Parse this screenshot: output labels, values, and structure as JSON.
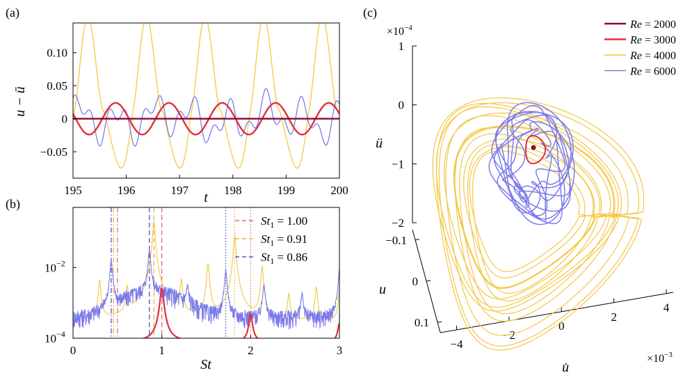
{
  "colors": {
    "re2000": "#8a0a2e",
    "re3000": "#e0303c",
    "re4000": "#f3c744",
    "re6000": "#7b7bea",
    "st100": "#e05060",
    "st091": "#e8a040",
    "st086": "#2a3ab0"
  },
  "chart_data": [
    {
      "panel_label": "(a)",
      "type": "line",
      "xlabel": "t",
      "ylabel": "u − ū",
      "xlim": [
        195,
        200
      ],
      "ylim": [
        -0.09,
        0.145
      ],
      "x_ticks": [
        "195",
        "196",
        "197",
        "198",
        "199",
        "200"
      ],
      "y_ticks": [
        {
          "v": 0.1,
          "label": "0.10"
        },
        {
          "v": 0.05,
          "label": "0.05"
        },
        {
          "v": 0,
          "label": "0"
        },
        {
          "v": -0.05,
          "label": "−0.05"
        }
      ],
      "series": [
        {
          "name": "Re = 4000",
          "type": "sine",
          "amplitude": 0.11,
          "offset": 0.025,
          "period": 1.1,
          "peak_t": 195.3,
          "sharpness": 3
        },
        {
          "name": "Re = 6000",
          "type": "multi",
          "components": [
            {
              "amp": 0.022,
              "freq": 1.43,
              "phase": 0.4
            },
            {
              "amp": 0.016,
              "freq": 3.05,
              "phase": 1.3
            },
            {
              "amp": 0.008,
              "freq": 0.52,
              "phase": 2.0
            }
          ]
        },
        {
          "name": "Re = 3000",
          "type": "sine",
          "amplitude": 0.024,
          "offset": 0.0,
          "period": 1.0,
          "peak_t": 195.8
        },
        {
          "name": "Re = 2000",
          "type": "constant",
          "value": 0.0
        }
      ]
    },
    {
      "panel_label": "(b)",
      "type": "line",
      "xlabel": "St",
      "ylabel": "",
      "xlim": [
        0,
        3
      ],
      "yscale": "log",
      "ylim": [
        0.0001,
        0.5
      ],
      "x_ticks": [
        "0",
        "1",
        "2",
        "3"
      ],
      "y_ticks": [
        {
          "exp": -2,
          "label": "10",
          "sup": "−2"
        },
        {
          "exp": -4,
          "label": "10",
          "sup": "−4"
        }
      ],
      "legend": [
        {
          "label": "St",
          "sub": "1",
          "value": " = 1.00",
          "style": "dashed",
          "color_key": "st100"
        },
        {
          "label": "St",
          "sub": "1",
          "value": " = 0.91",
          "style": "dashed",
          "color_key": "st091"
        },
        {
          "label": "St",
          "sub": "1",
          "value": " = 0.86",
          "style": "dashed",
          "color_key": "st086"
        }
      ],
      "vlines": [
        {
          "x": 1.0,
          "color_key": "st100",
          "style": "dashed"
        },
        {
          "x": 0.5,
          "color_key": "st100",
          "style": "dashdot"
        },
        {
          "x": 2.0,
          "color_key": "st100",
          "style": "dotted"
        },
        {
          "x": 0.91,
          "color_key": "st091",
          "style": "dashed"
        },
        {
          "x": 0.455,
          "color_key": "st091",
          "style": "dashdot"
        },
        {
          "x": 1.82,
          "color_key": "st091",
          "style": "dotted"
        },
        {
          "x": 0.86,
          "color_key": "st086",
          "style": "dashed"
        },
        {
          "x": 0.43,
          "color_key": "st086",
          "style": "dashdot"
        },
        {
          "x": 1.72,
          "color_key": "st086",
          "style": "dotted"
        }
      ],
      "series": [
        {
          "name": "Re = 4000",
          "base": 0.0003,
          "peaks": [
            {
              "x": 0.3,
              "h": 0.004
            },
            {
              "x": 0.61,
              "h": 0.0025
            },
            {
              "x": 0.91,
              "h": 0.2
            },
            {
              "x": 1.22,
              "h": 0.004
            },
            {
              "x": 1.52,
              "h": 0.012
            },
            {
              "x": 1.82,
              "h": 0.08
            },
            {
              "x": 2.13,
              "h": 0.01
            },
            {
              "x": 2.43,
              "h": 0.0015
            },
            {
              "x": 2.74,
              "h": 0.0025
            },
            {
              "x": 3.0,
              "h": 0.002
            }
          ]
        },
        {
          "name": "Re = 6000",
          "base": 0.00025,
          "peaks": [
            {
              "x": 0.43,
              "h": 0.015
            },
            {
              "x": 0.86,
              "h": 0.03
            },
            {
              "x": 1.29,
              "h": 0.002
            },
            {
              "x": 1.72,
              "h": 0.008
            },
            {
              "x": 2.15,
              "h": 0.003
            },
            {
              "x": 2.58,
              "h": 0.0015
            },
            {
              "x": 3.0,
              "h": 0.008
            }
          ]
        },
        {
          "name": "Re = 3000",
          "base": 8e-05,
          "peaks": [
            {
              "x": 1.0,
              "h": 0.0025
            },
            {
              "x": 2.0,
              "h": 0.0004
            },
            {
              "x": 3.0,
              "h": 0.00018
            }
          ]
        }
      ]
    },
    {
      "panel_label": "(c)",
      "type": "scatter",
      "xlabel": "u̇",
      "ylabel": "u",
      "zlabel": "ü",
      "x_scale_label": "×10",
      "x_scale_exp": "−3",
      "z_scale_label": "×10",
      "z_scale_exp": "−4",
      "x_ticks": [
        "−4",
        "−2",
        "0",
        "2",
        "4"
      ],
      "y_ticks": [
        "−0.1",
        "0",
        "0.1"
      ],
      "z_ticks": [
        "1",
        "0",
        "−1",
        "−2"
      ],
      "legend": [
        {
          "label": "Re",
          "value": " = 2000",
          "color_key": "re2000"
        },
        {
          "label": "Re",
          "value": " = 3000",
          "color_key": "re3000"
        },
        {
          "label": "Re",
          "value": " = 4000",
          "color_key": "re4000"
        },
        {
          "label": "Re",
          "value": " = 6000",
          "color_key": "re6000"
        }
      ]
    }
  ]
}
